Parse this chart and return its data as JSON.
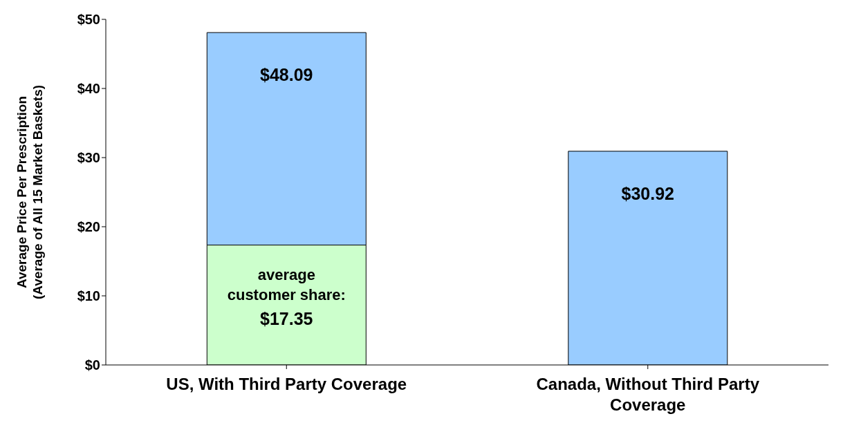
{
  "chart_data": {
    "type": "bar",
    "stacked": true,
    "ylabel": "Average Price Per Prescription (Average of All 15 Market Baskets)",
    "categories": [
      "US, With Third Party Coverage",
      "Canada, Without Third Party Coverage"
    ],
    "series": [
      {
        "color": "#ccffcc",
        "values": [
          17.35,
          null
        ],
        "value_labels": [
          "average customer share: $17.35",
          null
        ]
      },
      {
        "color": "#99ccff",
        "values": [
          30.74,
          30.92
        ]
      }
    ],
    "totals": [
      "$48.09",
      "$30.92"
    ],
    "ylim": [
      0,
      50
    ],
    "yticks": [
      {
        "value": 0,
        "label": "$0"
      },
      {
        "value": 10,
        "label": "$10"
      },
      {
        "value": 20,
        "label": "$20"
      },
      {
        "value": 30,
        "label": "$30"
      },
      {
        "value": 40,
        "label": "$40"
      },
      {
        "value": 50,
        "label": "$50"
      }
    ],
    "grid": false,
    "legend": false
  }
}
